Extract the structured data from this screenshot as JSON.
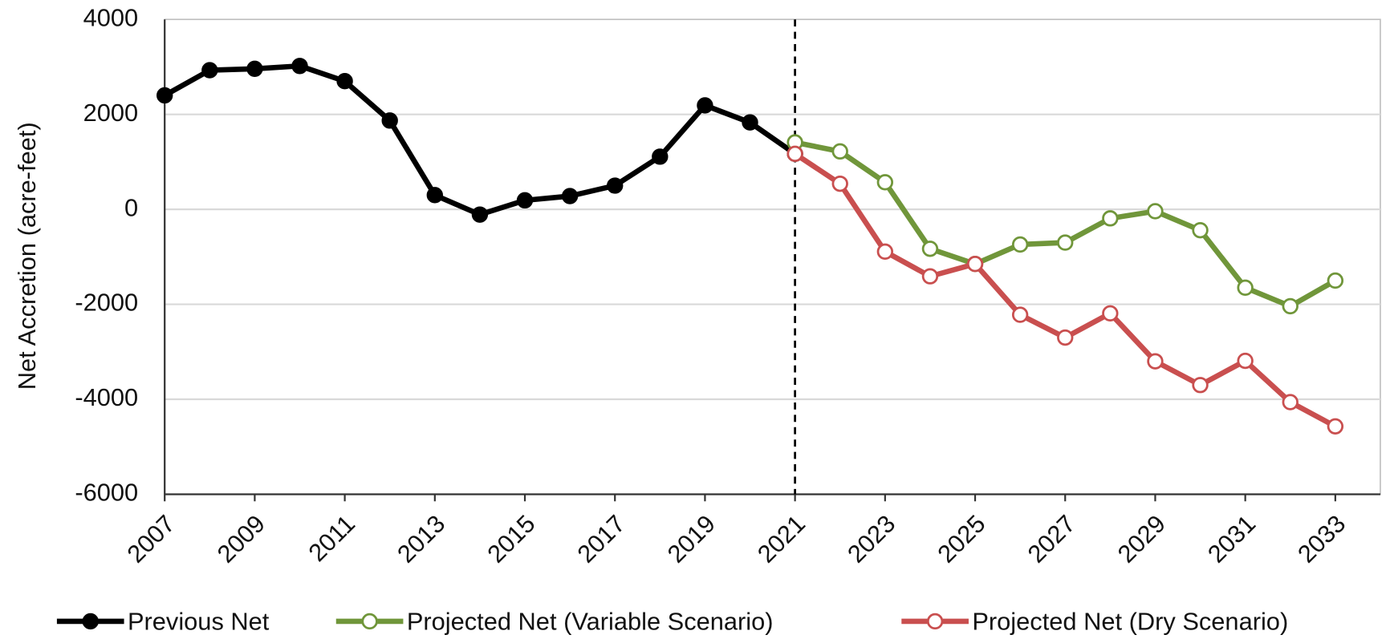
{
  "chart_data": {
    "type": "line",
    "y_label": "Net Accretion (acre-feet)",
    "x": [
      2007,
      2008,
      2009,
      2010,
      2011,
      2012,
      2013,
      2014,
      2015,
      2016,
      2017,
      2018,
      2019,
      2020,
      2021,
      2022,
      2023,
      2024,
      2025,
      2026,
      2027,
      2028,
      2029,
      2030,
      2031,
      2032,
      2033
    ],
    "series": [
      {
        "name": "Previous Net",
        "color": "#000000",
        "marker": "filled",
        "values": [
          2400,
          2930,
          2960,
          3020,
          2700,
          1870,
          300,
          -110,
          190,
          280,
          500,
          1110,
          2190,
          1830,
          1170,
          null,
          null,
          null,
          null,
          null,
          null,
          null,
          null,
          null,
          null,
          null,
          null
        ]
      },
      {
        "name": "Projected Net (Variable Scenario)",
        "color": "#70963a",
        "marker": "open",
        "values": [
          null,
          null,
          null,
          null,
          null,
          null,
          null,
          null,
          null,
          null,
          null,
          null,
          null,
          null,
          1410,
          1220,
          570,
          -830,
          -1150,
          -740,
          -700,
          -190,
          -40,
          -440,
          -1650,
          -2040,
          -1500
        ]
      },
      {
        "name": "Projected Net (Dry Scenario)",
        "color": "#c94f4f",
        "marker": "open",
        "values": [
          null,
          null,
          null,
          null,
          null,
          null,
          null,
          null,
          null,
          null,
          null,
          null,
          null,
          null,
          1170,
          540,
          -890,
          -1410,
          -1150,
          -2220,
          -2700,
          -2190,
          -3200,
          -3700,
          -3190,
          -4060,
          -4570
        ]
      }
    ],
    "xlim": [
      2007,
      2034
    ],
    "xticks": [
      2007,
      2009,
      2011,
      2013,
      2015,
      2017,
      2019,
      2021,
      2023,
      2025,
      2027,
      2029,
      2031,
      2033
    ],
    "ylim": [
      -6000,
      4000
    ],
    "yticks": [
      -6000,
      -4000,
      -2000,
      0,
      2000,
      4000
    ],
    "grid": true,
    "vline": 2021,
    "legend": "bottom"
  }
}
